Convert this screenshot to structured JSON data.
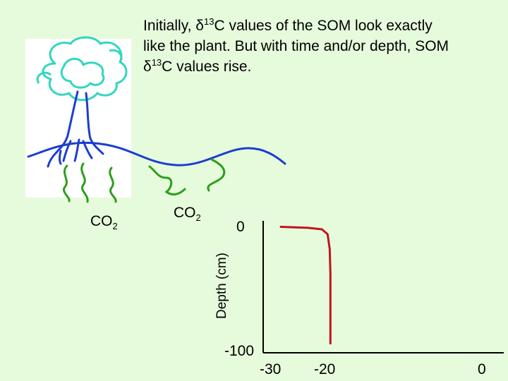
{
  "caption": {
    "line1_pre": "Initially, δ",
    "line1_sup": "13",
    "line1_post": "C values of the SOM look exactly",
    "line2": "like the plant. But with time and/or depth, SOM",
    "line3_pre": "δ",
    "line3_sup": "13",
    "line3_post": "C values rise."
  },
  "co2_labels": [
    {
      "main": "CO",
      "sub": "2"
    },
    {
      "main": "CO",
      "sub": "2"
    }
  ],
  "colors": {
    "background": "#e6fbdc",
    "tree_canopy": "#33d6c0",
    "tree_trunk": "#1a3fcf",
    "co2_arrows": "#2e9e1a",
    "curve": "#c0141e"
  },
  "chart_data": {
    "type": "line",
    "ylabel": "Depth (cm)",
    "xlabel": "",
    "x_ticks": [
      "-30",
      "-20",
      "0"
    ],
    "y_ticks": [
      "0",
      "-100"
    ],
    "xlim": [
      -30,
      0
    ],
    "ylim": [
      -100,
      0
    ],
    "series": [
      {
        "values": [
          [
            -28.8,
            -2
          ],
          [
            -25,
            -2.8
          ],
          [
            -23,
            -4
          ],
          [
            -22.2,
            -8
          ],
          [
            -21.9,
            -20
          ],
          [
            -21.8,
            -40
          ],
          [
            -21.8,
            -70
          ],
          [
            -21.8,
            -97
          ]
        ]
      }
    ]
  }
}
